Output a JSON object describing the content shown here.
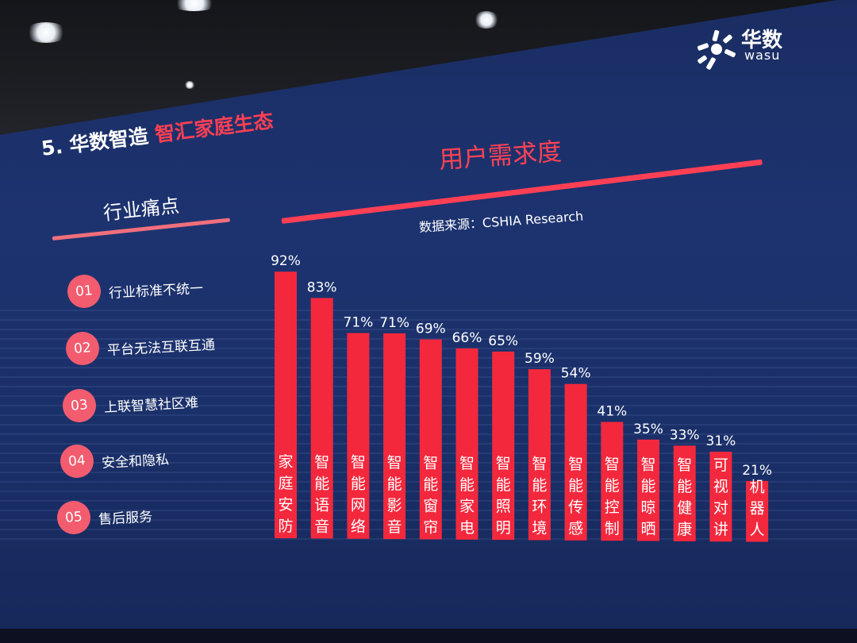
{
  "logo": {
    "cn": "华数",
    "en": "wasu"
  },
  "heading": {
    "prefix": "5. 华数智造 ",
    "highlight": "智汇家庭生态"
  },
  "pain_points": {
    "title": "行业痛点",
    "items": [
      {
        "num": "01",
        "text": "行业标准不统一"
      },
      {
        "num": "02",
        "text": "平台无法互联互通"
      },
      {
        "num": "03",
        "text": "上联智慧社区难"
      },
      {
        "num": "04",
        "text": "安全和隐私"
      },
      {
        "num": "05",
        "text": "售后服务"
      }
    ]
  },
  "demand": {
    "title": "用户需求度",
    "source": "数据来源：CSHIA Research"
  },
  "colors": {
    "bar": "#f3283d",
    "accent": "#ff3f54",
    "background": "#1c3170",
    "badge": "#f25c6e"
  },
  "chart_data": {
    "type": "bar",
    "title": "用户需求度",
    "categories": [
      "家庭安防",
      "智能语音",
      "智能网络",
      "智能影音",
      "智能窗帘",
      "智能家电",
      "智能照明",
      "智能环境",
      "智能传感",
      "智能控制",
      "智能晾晒",
      "智能健康",
      "可视对讲",
      "机器人"
    ],
    "values": [
      92,
      83,
      71,
      71,
      69,
      66,
      65,
      59,
      54,
      41,
      35,
      33,
      31,
      21
    ],
    "labels": [
      "92%",
      "83%",
      "71%",
      "71%",
      "69%",
      "66%",
      "65%",
      "59%",
      "54%",
      "41%",
      "35%",
      "33%",
      "31%",
      "21%"
    ],
    "unit": "%",
    "ylim": [
      0,
      100
    ],
    "grid": false,
    "legend": "none",
    "source": "数据来源：CSHIA Research"
  }
}
